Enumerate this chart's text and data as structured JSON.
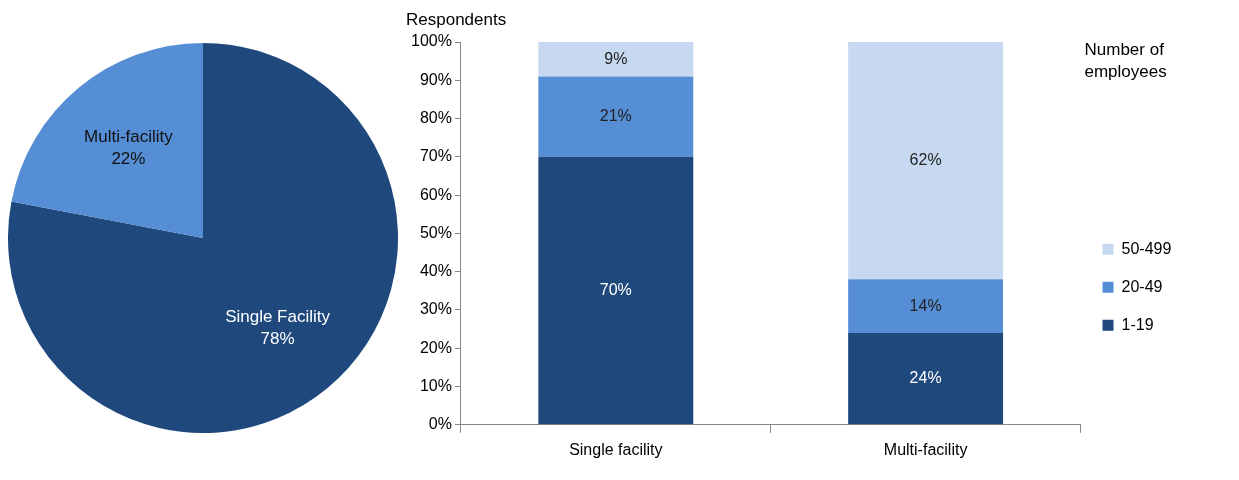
{
  "chart_data": [
    {
      "type": "pie",
      "categories": [
        "Single Facility",
        "Multi-facility"
      ],
      "values": [
        78,
        22
      ],
      "colors": [
        "#1f497d",
        "#558ed5"
      ],
      "value_labels": [
        "78%",
        "22%"
      ],
      "legend": false
    },
    {
      "type": "bar",
      "stacked": true,
      "ylabel": "Respondents",
      "legend_title": "Number of employees",
      "legend": "right",
      "grid": false,
      "categories": [
        "Single facility",
        "Multi-facility"
      ],
      "ylim": [
        0,
        100
      ],
      "yticks": [
        {
          "value": 0,
          "label": "0%"
        },
        {
          "value": 10,
          "label": "10%"
        },
        {
          "value": 20,
          "label": "20%"
        },
        {
          "value": 30,
          "label": "30%"
        },
        {
          "value": 40,
          "label": "40%"
        },
        {
          "value": 50,
          "label": "50%"
        },
        {
          "value": 60,
          "label": "60%"
        },
        {
          "value": 70,
          "label": "70%"
        },
        {
          "value": 80,
          "label": "80%"
        },
        {
          "value": 90,
          "label": "90%"
        },
        {
          "value": 100,
          "label": "100%"
        }
      ],
      "series": [
        {
          "name": "1-19",
          "color": "#1f497d",
          "values": [
            70,
            24
          ],
          "value_labels": [
            "70%",
            "24%"
          ]
        },
        {
          "name": "20-49",
          "color": "#558ed5",
          "values": [
            21,
            14
          ],
          "value_labels": [
            "21%",
            "14%"
          ]
        },
        {
          "name": "50-499",
          "color": "#c6d9f1",
          "values": [
            9,
            62
          ],
          "value_labels": [
            "9%",
            "62%"
          ]
        }
      ]
    }
  ]
}
